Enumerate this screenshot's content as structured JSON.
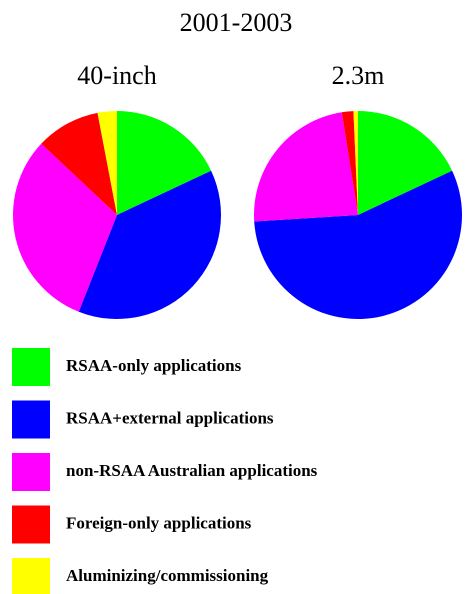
{
  "title": "2001-2003",
  "categories": [
    "RSAA-only applications",
    "RSAA+external applications",
    "non-RSAA Australian applications",
    "Foreign-only applications",
    "Aluminizing/commissioning"
  ],
  "colors": [
    "#00ff00",
    "#0000ff",
    "#ff00ff",
    "#ff0000",
    "#ffff00"
  ],
  "chart_data": [
    {
      "type": "pie",
      "title": "40-inch",
      "values": [
        18,
        38,
        31,
        10,
        3
      ]
    },
    {
      "type": "pie",
      "title": "2.3m",
      "values": [
        18,
        56,
        23.5,
        1.8,
        0.7
      ]
    }
  ]
}
